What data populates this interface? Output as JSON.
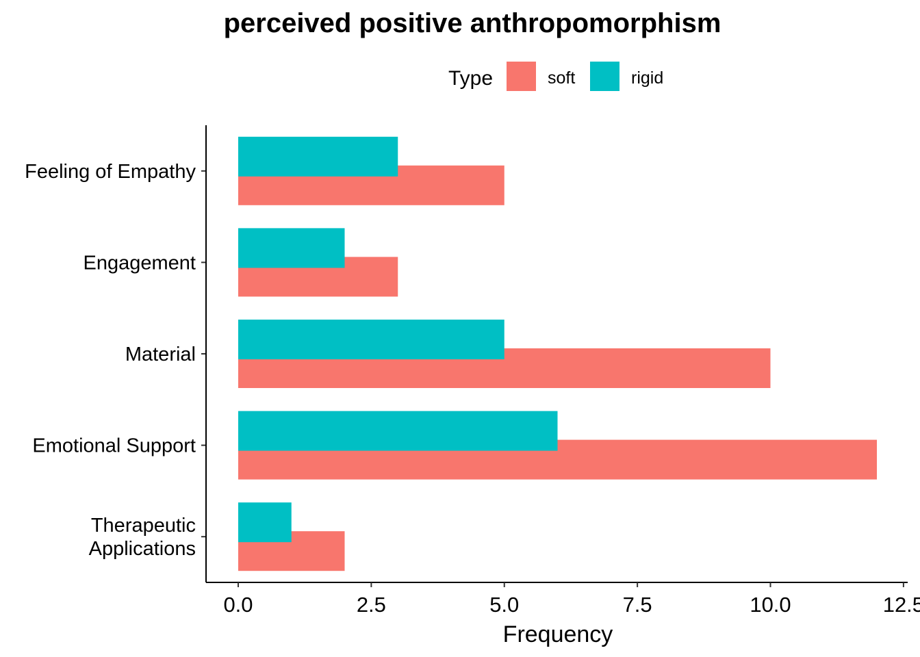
{
  "chart_data": {
    "type": "bar",
    "orientation": "horizontal",
    "title": "perceived positive anthropomorphism",
    "xlabel": "Frequency",
    "ylabel": "",
    "xlim": [
      0,
      12.5
    ],
    "x_ticks": [
      "0.0",
      "2.5",
      "5.0",
      "7.5",
      "10.0",
      "12.5"
    ],
    "x_tick_values": [
      0,
      2.5,
      5,
      7.5,
      10,
      12.5
    ],
    "categories": [
      [
        "Feeling of Empathy"
      ],
      [
        "Engagement"
      ],
      [
        "Material"
      ],
      [
        "Emotional Support"
      ],
      [
        "Therapeutic",
        "Applications"
      ]
    ],
    "legend": {
      "title": "Type",
      "placement": "top",
      "entries": [
        "soft",
        "rigid"
      ]
    },
    "series": [
      {
        "name": "soft",
        "color": "#F8766D",
        "values": [
          5,
          3,
          10,
          12,
          2
        ]
      },
      {
        "name": "rigid",
        "color": "#00BFC4",
        "values": [
          3,
          2,
          5,
          6,
          1
        ]
      }
    ],
    "grid": false
  }
}
